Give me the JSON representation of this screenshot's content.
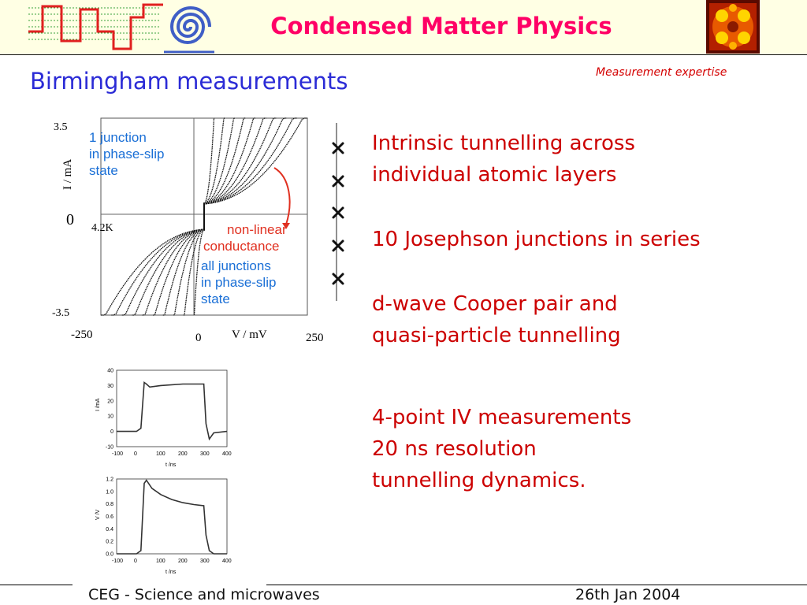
{
  "header": {
    "title": "Condensed Matter Physics",
    "left_logo_icon": "square-wave-and-spiral-logo-icon",
    "right_logo_icon": "orange-fermi-surface-image-icon"
  },
  "subtitle": "Birmingham measurements",
  "tag": "Measurement expertise",
  "bullets": {
    "b1_line1": "Intrinsic tunnelling across",
    "b1_line2": "individual atomic layers",
    "b2_line1": "10 Josephson junctions in series",
    "b3_line1": "d-wave Cooper pair and",
    "b3_line2": "quasi-particle tunnelling",
    "b4_line1": "4-point  IV measurements",
    "b4_line2": "20 ns resolution",
    "b4_line3": "tunnelling dynamics."
  },
  "colors": {
    "title": "#ff0066",
    "subtitle": "#2b2bd6",
    "bullet": "#cc0000",
    "annotation_blue": "#1a6fd6",
    "annotation_red": "#e03020"
  },
  "chart_data": [
    {
      "type": "line",
      "xlabel": "V / mV",
      "ylabel": "I / mA",
      "xlim": [
        -250,
        250
      ],
      "ylim": [
        -3.5,
        3.5
      ],
      "x_ticks": [
        "-250",
        "0",
        "250"
      ],
      "y_ticks": [
        "3.5",
        "0",
        "-3.5"
      ],
      "temperature_label": "4.2K",
      "annotations": {
        "top_left_l1": "1 junction",
        "top_left_l2": "in phase-slip",
        "top_left_l3": "state",
        "nonlinear_l1": "non-linear",
        "nonlinear_l2": "conductance",
        "bottom_l1": "all junctions",
        "bottom_l2": "in phase-slip",
        "bottom_l3": "state"
      },
      "series_description_count": 10,
      "branches_count": 10
    },
    {
      "type": "line",
      "xlabel": "t /ns",
      "ylabel": "I /mA",
      "xlim": [
        -100,
        400
      ],
      "ylim": [
        -10,
        40
      ],
      "x_ticks": [
        "-100",
        "0",
        "100",
        "200",
        "300",
        "400"
      ],
      "y_ticks": [
        "40",
        "30",
        "20",
        "10",
        "0",
        "-10"
      ],
      "points": [
        [
          -100,
          0
        ],
        [
          -10,
          0
        ],
        [
          10,
          2
        ],
        [
          25,
          32
        ],
        [
          35,
          31
        ],
        [
          50,
          29
        ],
        [
          100,
          30
        ],
        [
          200,
          31
        ],
        [
          295,
          31
        ],
        [
          305,
          5
        ],
        [
          320,
          -5
        ],
        [
          340,
          -1
        ],
        [
          400,
          0
        ]
      ]
    },
    {
      "type": "line",
      "xlabel": "t /ns",
      "ylabel": "V /V",
      "xlim": [
        -100,
        400
      ],
      "ylim": [
        0.0,
        1.2
      ],
      "x_ticks": [
        "-100",
        "0",
        "100",
        "200",
        "300",
        "400"
      ],
      "y_ticks": [
        "1.2",
        "1.0",
        "0.8",
        "0.6",
        "0.4",
        "0.2",
        "0.0"
      ],
      "points": [
        [
          -100,
          0
        ],
        [
          -10,
          0
        ],
        [
          10,
          0.05
        ],
        [
          25,
          1.13
        ],
        [
          35,
          1.18
        ],
        [
          60,
          1.05
        ],
        [
          100,
          0.95
        ],
        [
          150,
          0.87
        ],
        [
          200,
          0.82
        ],
        [
          250,
          0.79
        ],
        [
          295,
          0.77
        ],
        [
          305,
          0.3
        ],
        [
          320,
          0.05
        ],
        [
          340,
          0.0
        ],
        [
          400,
          0.0
        ]
      ]
    }
  ],
  "footer": {
    "left": "CEG - Science and microwaves",
    "right": "26th Jan 2004"
  }
}
